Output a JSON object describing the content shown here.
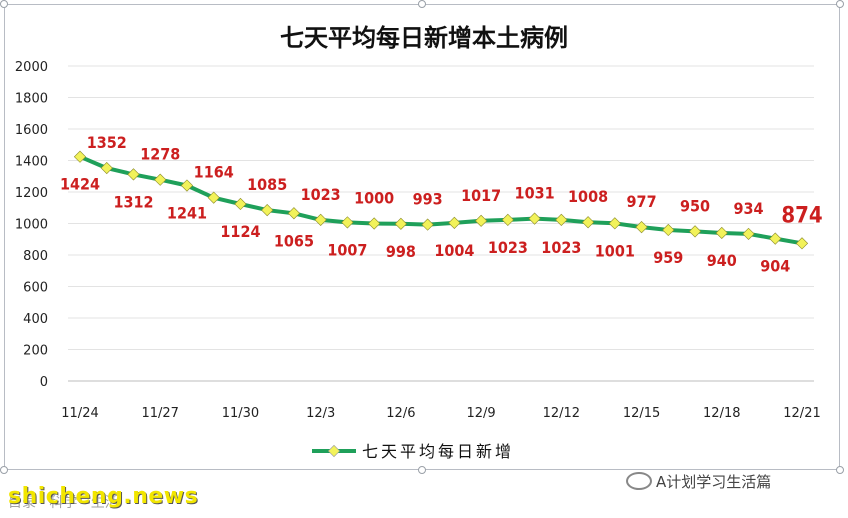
{
  "chart_data": {
    "type": "line",
    "title": "七天平均每日新增本土病例",
    "x": [
      "11/24",
      "11/25",
      "11/26",
      "11/27",
      "11/28",
      "11/29",
      "11/30",
      "12/1",
      "12/2",
      "12/3",
      "12/4",
      "12/5",
      "12/6",
      "12/7",
      "12/8",
      "12/9",
      "12/10",
      "12/11",
      "12/12",
      "12/13",
      "12/14",
      "12/15",
      "12/16",
      "12/17",
      "12/18",
      "12/19",
      "12/20",
      "12/21"
    ],
    "tick_labels": [
      "11/24",
      "11/27",
      "11/30",
      "12/3",
      "12/6",
      "12/9",
      "12/12",
      "12/15",
      "12/18",
      "12/21"
    ],
    "series": [
      {
        "name": "七天平均每日新增",
        "color": "#1fa05a",
        "marker_color": "#f2f25a",
        "values": [
          1424,
          1352,
          1312,
          1278,
          1241,
          1164,
          1124,
          1085,
          1065,
          1023,
          1007,
          1000,
          998,
          993,
          1004,
          1017,
          1023,
          1031,
          1023,
          1008,
          1001,
          977,
          959,
          950,
          940,
          934,
          904,
          874
        ]
      }
    ],
    "label_color": "#cc1f1f",
    "ylim": [
      0,
      2000
    ],
    "yticks": [
      0,
      200,
      400,
      600,
      800,
      1000,
      1200,
      1400,
      1600,
      1800,
      2000
    ],
    "grid": true,
    "legend": "bottom"
  },
  "watermarks": {
    "left": "shicheng.news",
    "left_sub": "目录 · 科学 · 生活",
    "right": "A计划学习生活篇"
  }
}
